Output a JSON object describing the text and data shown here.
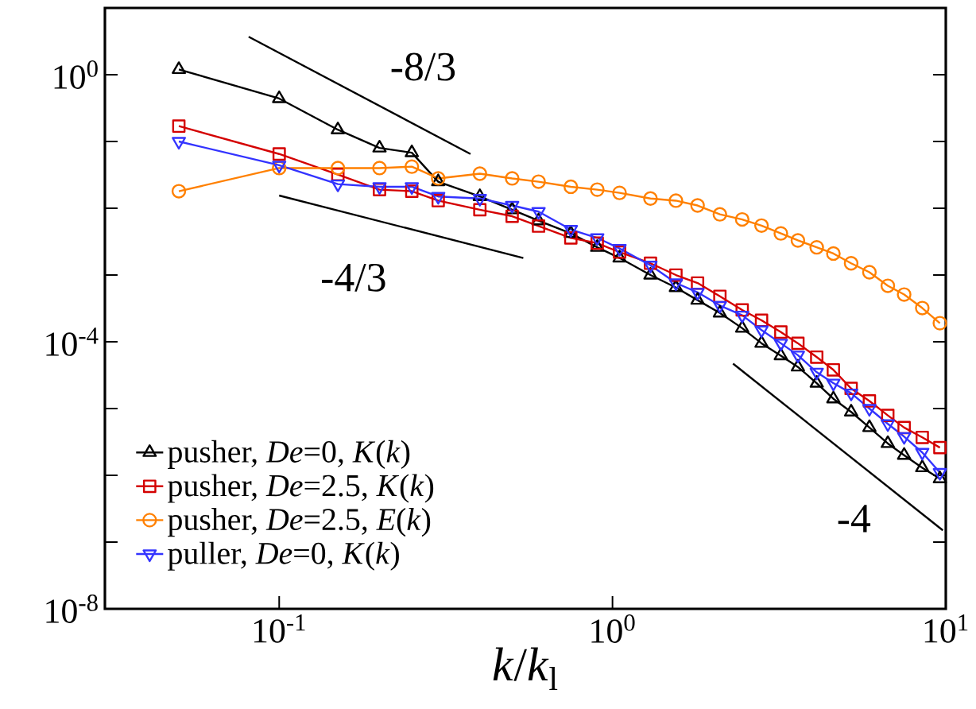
{
  "chart_data": {
    "type": "line",
    "log": "xy",
    "legend": "bottom left",
    "xlabel": "*k*/*k*$_{l}$",
    "xlim": [
      0.03,
      10
    ],
    "ylim": [
      1e-08,
      10
    ],
    "xticks": [
      {
        "value": 0.1,
        "label": "10$^{-1}$"
      },
      {
        "value": 1,
        "label": "10$^{0}$"
      },
      {
        "value": 10,
        "label": "10$^{1}$"
      }
    ],
    "yticks": [
      {
        "value": 1e-08,
        "label": "10$^{-8}$"
      },
      {
        "value": 1e-07,
        "label": null
      },
      {
        "value": 1e-06,
        "label": null
      },
      {
        "value": 1e-05,
        "label": null
      },
      {
        "value": 0.0001,
        "label": "10$^{-4}$"
      },
      {
        "value": 0.001,
        "label": null
      },
      {
        "value": 0.01,
        "label": null
      },
      {
        "value": 0.1,
        "label": null
      },
      {
        "value": 1,
        "label": "10$^{0}$"
      }
    ],
    "x": [
      0.05,
      0.1,
      0.15,
      0.2,
      0.25,
      0.3,
      0.4,
      0.5,
      0.6,
      0.75,
      0.9,
      1.05,
      1.3,
      1.55,
      1.8,
      2.1,
      2.45,
      2.8,
      3.2,
      3.6,
      4.1,
      4.6,
      5.2,
      5.9,
      6.7,
      7.5,
      8.5,
      9.6
    ],
    "series": [
      {
        "name": "pusher, *De*=0, *K*(*k*)",
        "color": "#000000",
        "marker": "triangle",
        "values": [
          1.2,
          0.44,
          0.15,
          0.08,
          0.068,
          0.025,
          0.015,
          0.0095,
          0.0065,
          0.0042,
          0.0026,
          0.0018,
          0.001,
          0.00065,
          0.00042,
          0.00027,
          0.00016,
          9.5e-05,
          6.2e-05,
          4.2e-05,
          2.4e-05,
          1.4e-05,
          8.9e-06,
          5.2e-06,
          3e-06,
          2e-06,
          1.3e-06,
          8.9e-07
        ]
      },
      {
        "name": "pusher, *De*=2.5, *K*(*k*)",
        "color": "#d40000",
        "marker": "square",
        "values": [
          0.17,
          0.065,
          0.032,
          0.019,
          0.018,
          0.013,
          0.0095,
          0.0076,
          0.0054,
          0.0036,
          0.003,
          0.0022,
          0.0015,
          0.001,
          0.00076,
          0.00048,
          0.0003,
          0.00021,
          0.00014,
          9.5e-05,
          5.9e-05,
          3.8e-05,
          2e-05,
          1.3e-05,
          7.9e-06,
          5.2e-06,
          3.7e-06,
          2.6e-06
        ]
      },
      {
        "name": "pusher, *De*=2.5, *E*(*k*)",
        "color": "#ff8000",
        "marker": "circle",
        "values": [
          0.018,
          0.04,
          0.04,
          0.04,
          0.042,
          0.028,
          0.033,
          0.028,
          0.025,
          0.021,
          0.019,
          0.017,
          0.014,
          0.013,
          0.011,
          0.0081,
          0.0068,
          0.0055,
          0.0042,
          0.0033,
          0.0026,
          0.0021,
          0.0015,
          0.0011,
          0.00069,
          0.00051,
          0.00032,
          0.00019
        ]
      },
      {
        "name": "puller, *De*=0, *K*(*k*)",
        "color": "#3333ff",
        "marker": "triangle-down",
        "values": [
          0.1,
          0.044,
          0.023,
          0.021,
          0.021,
          0.015,
          0.014,
          0.011,
          0.0089,
          0.0048,
          0.0036,
          0.0025,
          0.0014,
          0.00076,
          0.00055,
          0.00035,
          0.00025,
          0.00015,
          9.5e-05,
          6.3e-05,
          3.5e-05,
          2.4e-05,
          1.7e-05,
          1e-05,
          5.9e-06,
          3.8e-06,
          2.2e-06,
          1.1e-06
        ]
      },
      {
        "type": "line",
        "color": "#000000",
        "marker": "none",
        "x": [
          0.081,
          0.375
        ],
        "values": [
          3.7,
          0.065
        ]
      },
      {
        "type": "line",
        "color": "#000000",
        "marker": "none",
        "x": [
          0.1,
          0.54
        ],
        "values": [
          0.0155,
          0.0018
        ]
      },
      {
        "type": "line",
        "color": "#000000",
        "marker": "none",
        "x": [
          2.3,
          9.8
        ],
        "values": [
          4.7e-05,
          1.5e-07
        ]
      }
    ],
    "annotations": [
      "-8/3",
      "-4/3",
      "-4"
    ]
  }
}
